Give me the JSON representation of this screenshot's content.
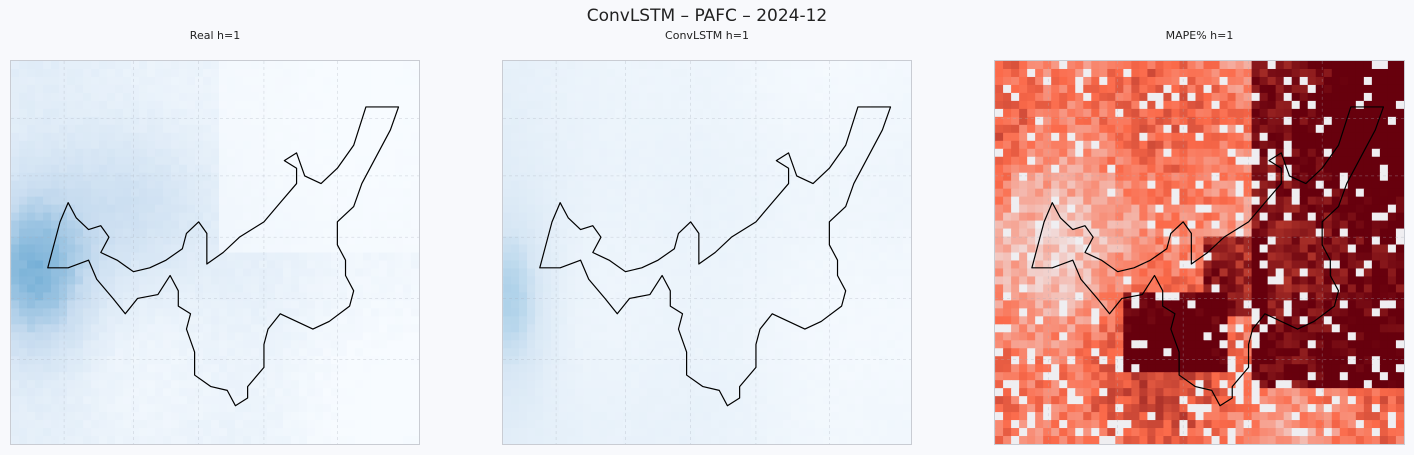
{
  "figure": {
    "title": "ConvLSTM – PAFC – 2024-12"
  },
  "chart_data": [
    {
      "type": "heatmap",
      "title": "Real h=1",
      "colormap": "Blues",
      "grid": true,
      "colors": {
        "low": "#f7fbff",
        "mid": "#c6dbef",
        "high": "#4a98c9"
      },
      "value_range": [
        0,
        1
      ]
    },
    {
      "type": "heatmap",
      "title": "ConvLSTM h=1",
      "colormap": "Blues",
      "grid": true,
      "colors": {
        "low": "#f7fbff",
        "mid": "#d6e6f4",
        "high": "#6baed6"
      },
      "value_range": [
        0,
        1
      ]
    },
    {
      "type": "heatmap",
      "title": "MAPE% h=1",
      "colormap": "Reds",
      "grid": true,
      "colors": {
        "low": "#eef3f8",
        "mid": "#fb6a4a",
        "high": "#67000d"
      },
      "value_range": [
        0,
        1
      ]
    }
  ]
}
